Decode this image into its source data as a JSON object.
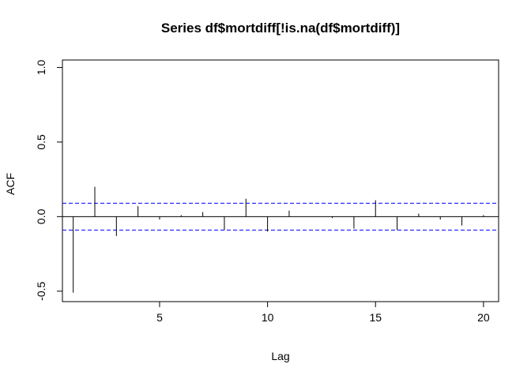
{
  "chart_data": {
    "type": "bar",
    "subtype": "acf-spikes",
    "title": "Series  df$mortdiff[!is.na(df$mortdiff)]",
    "xlabel": "Lag",
    "ylabel": "ACF",
    "xlim": [
      0.5,
      20.7
    ],
    "ylim": [
      -0.57,
      1.05
    ],
    "xticks": [
      5,
      10,
      15,
      20
    ],
    "xtick_labels": [
      "5",
      "10",
      "15",
      "20"
    ],
    "yticks": [
      -0.5,
      0.0,
      0.5,
      1.0
    ],
    "ytick_labels": [
      "-0.5",
      "0.0",
      "0.5",
      "1.0"
    ],
    "lags": [
      1,
      2,
      3,
      4,
      5,
      6,
      7,
      8,
      9,
      10,
      11,
      12,
      13,
      14,
      15,
      16,
      17,
      18,
      19,
      20
    ],
    "values": [
      -0.51,
      0.2,
      -0.13,
      0.07,
      -0.02,
      0.01,
      0.03,
      -0.09,
      0.12,
      -0.1,
      0.04,
      0.0,
      -0.01,
      -0.08,
      0.11,
      -0.09,
      0.02,
      -0.02,
      -0.06,
      0.01
    ],
    "confidence_bound": 0.09,
    "grid": false,
    "colors": {
      "spike": "#000000",
      "zero_line": "#000000",
      "confidence": "#0000FF",
      "frame": "#000000"
    }
  }
}
